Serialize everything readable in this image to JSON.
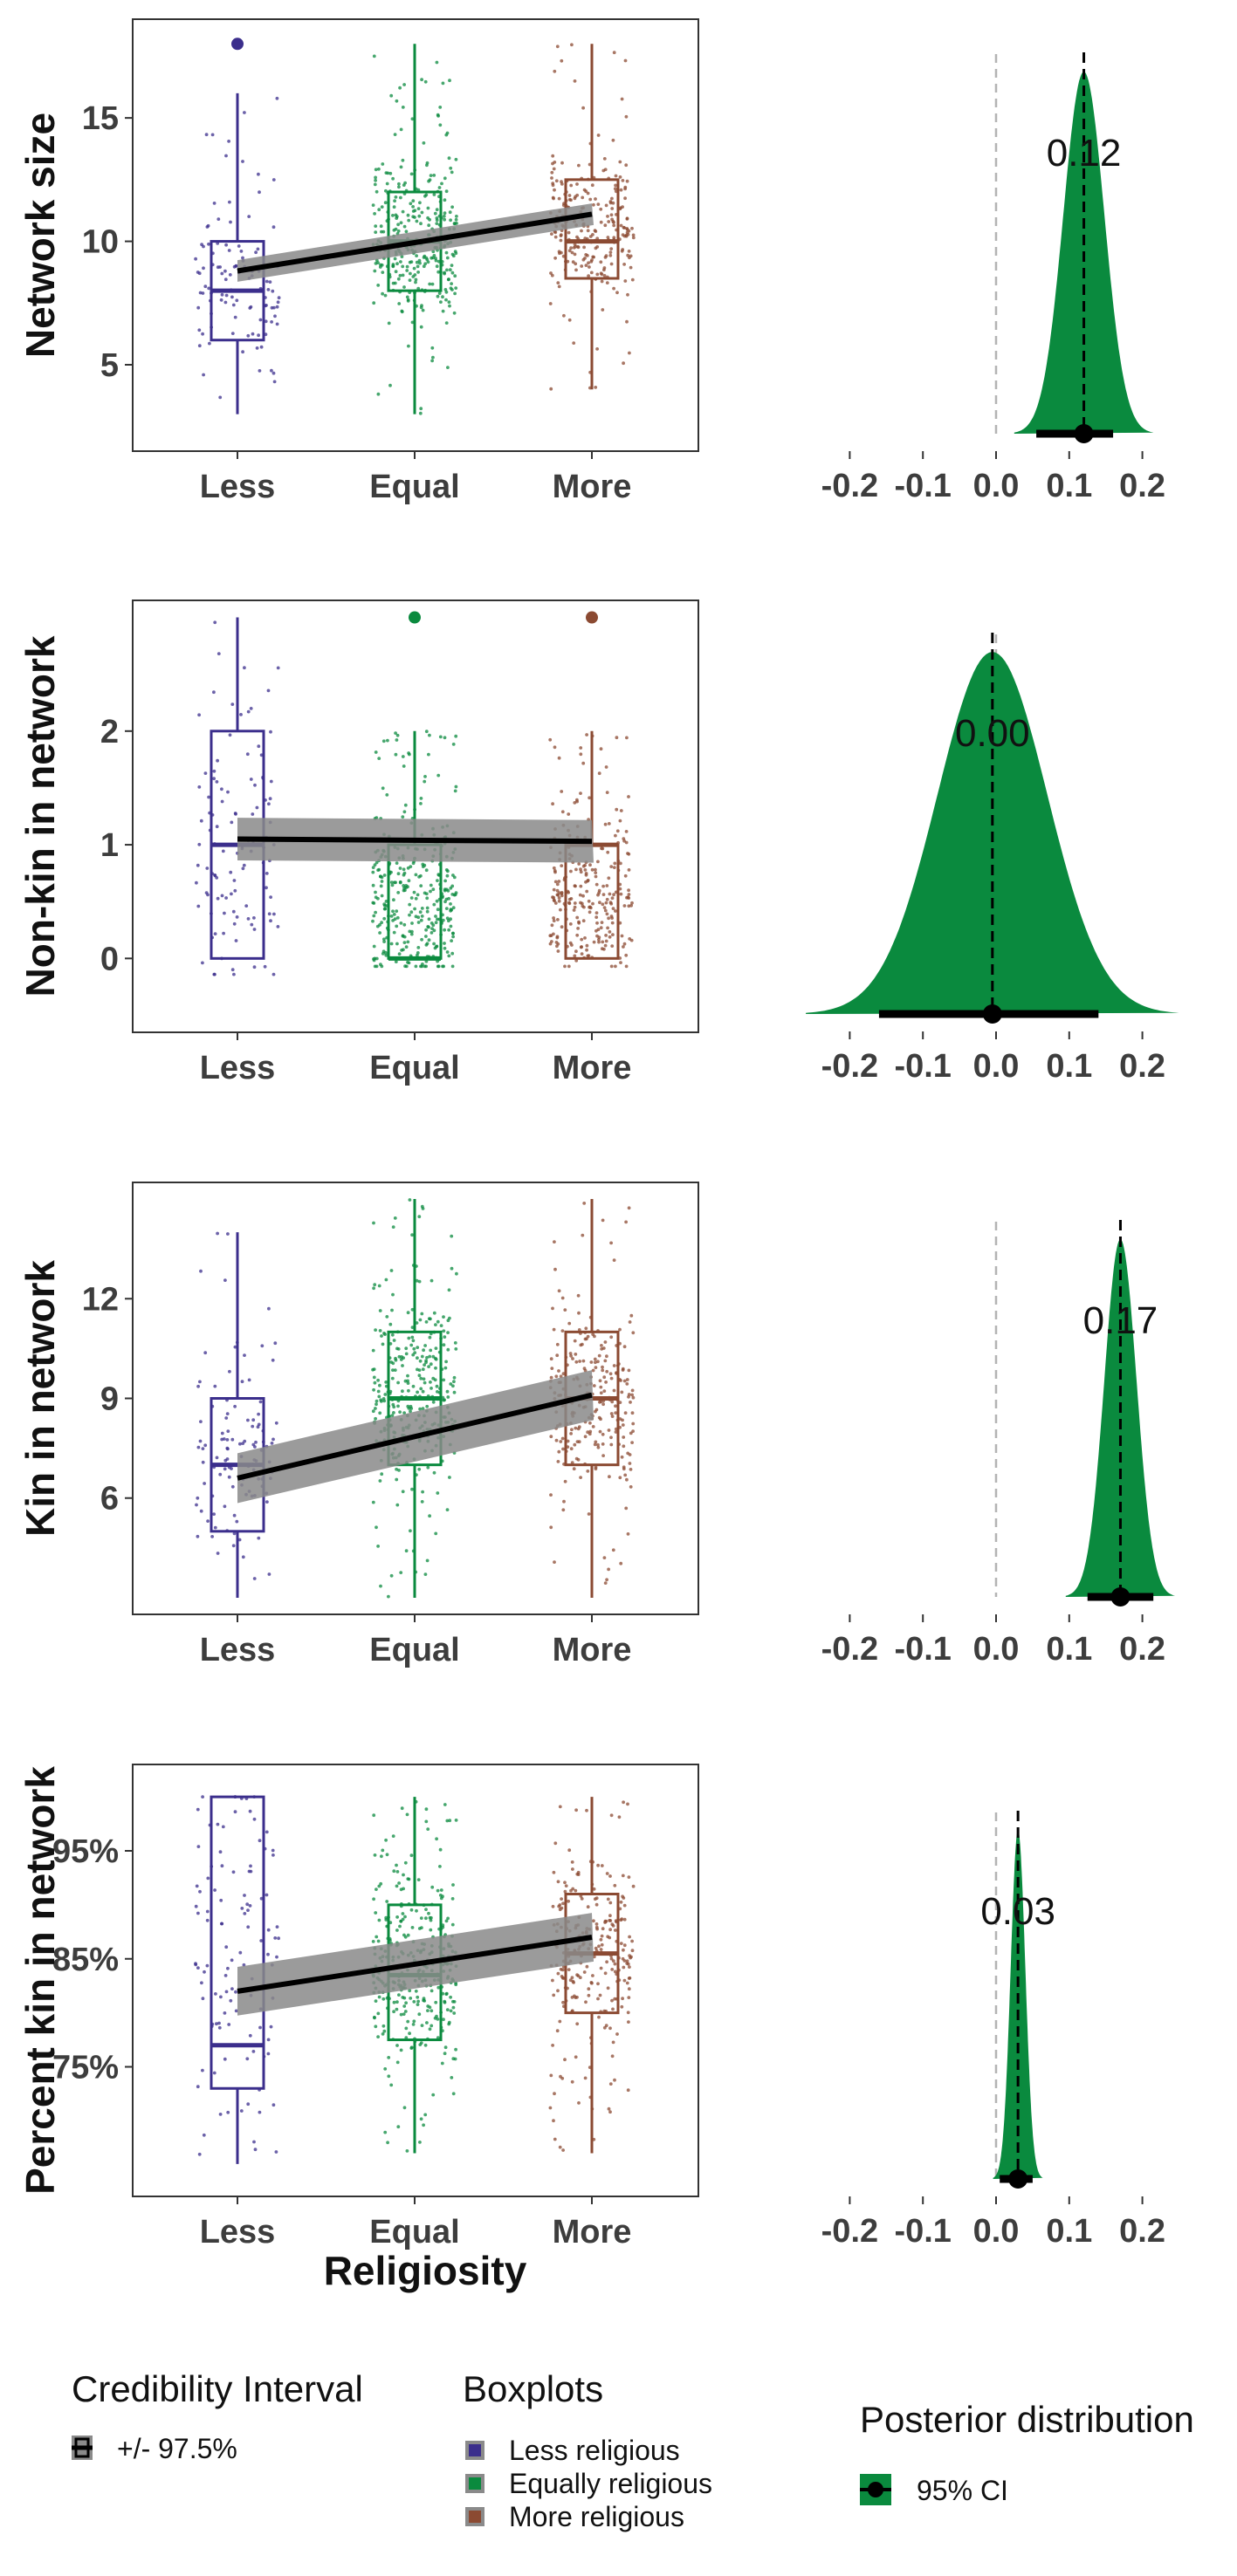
{
  "colors": {
    "less": "#3b2e8c",
    "equal": "#0a8a3e",
    "more": "#8b4a32",
    "posterior_fill": "#0a8a3e",
    "regression_line": "#000000",
    "ci_band": "#8a8a8a",
    "zero_line": "#b3b3b3"
  },
  "shared_xlabel": "Religiosity",
  "chart_data": [
    {
      "type": "boxplot",
      "ylabel": "Network size",
      "categories": [
        "Less",
        "Equal",
        "More"
      ],
      "y_tick_labels": [
        "5",
        "10",
        "15"
      ],
      "y_ticks": [
        5,
        10,
        15
      ],
      "ylim": [
        1.5,
        19
      ],
      "boxes": [
        {
          "category": "Less",
          "whisker_low": 3,
          "q1": 6,
          "median": 8,
          "q3": 10,
          "whisker_high": 16,
          "outliers": [
            18
          ]
        },
        {
          "category": "Equal",
          "whisker_low": 3,
          "q1": 8,
          "median": 10,
          "q3": 12,
          "whisker_high": 18,
          "outliers": []
        },
        {
          "category": "More",
          "whisker_low": 4,
          "q1": 8.5,
          "median": 10,
          "q3": 12.5,
          "whisker_high": 18,
          "outliers": []
        }
      ],
      "trend": {
        "start": 8.8,
        "end": 11.1,
        "band": 0.35
      }
    },
    {
      "type": "boxplot",
      "ylabel": "Non-kin in network",
      "categories": [
        "Less",
        "Equal",
        "More"
      ],
      "y_tick_labels": [
        "0",
        "1",
        "2"
      ],
      "y_ticks": [
        0,
        1,
        2
      ],
      "ylim": [
        -0.65,
        3.15
      ],
      "boxes": [
        {
          "category": "Less",
          "whisker_low": 0,
          "q1": 0,
          "median": 1,
          "q3": 2,
          "whisker_high": 3,
          "outliers": []
        },
        {
          "category": "Equal",
          "whisker_low": 0,
          "q1": 0,
          "median": 0,
          "q3": 1,
          "whisker_high": 2,
          "outliers": [
            3
          ]
        },
        {
          "category": "More",
          "whisker_low": 0,
          "q1": 0,
          "median": 1,
          "q3": 1,
          "whisker_high": 2,
          "outliers": [
            3
          ]
        }
      ],
      "trend": {
        "start": 1.05,
        "end": 1.03,
        "band": 0.15
      }
    },
    {
      "type": "boxplot",
      "ylabel": "Kin in network",
      "categories": [
        "Less",
        "Equal",
        "More"
      ],
      "y_tick_labels": [
        "6",
        "9",
        "12"
      ],
      "y_ticks": [
        6,
        9,
        12
      ],
      "ylim": [
        2.5,
        15.5
      ],
      "boxes": [
        {
          "category": "Less",
          "whisker_low": 3,
          "q1": 5,
          "median": 7,
          "q3": 9,
          "whisker_high": 14,
          "outliers": []
        },
        {
          "category": "Equal",
          "whisker_low": 3,
          "q1": 7,
          "median": 9,
          "q3": 11,
          "whisker_high": 15,
          "outliers": []
        },
        {
          "category": "More",
          "whisker_low": 3,
          "q1": 7,
          "median": 9,
          "q3": 11,
          "whisker_high": 15,
          "outliers": []
        }
      ],
      "trend": {
        "start": 6.6,
        "end": 9.1,
        "band": 0.6
      }
    },
    {
      "type": "boxplot",
      "ylabel": "Percent kin in network",
      "categories": [
        "Less",
        "Equal",
        "More"
      ],
      "y_tick_labels": [
        "75%",
        "85%",
        "95%"
      ],
      "y_ticks": [
        75,
        85,
        95
      ],
      "ylim": [
        63,
        103
      ],
      "boxes": [
        {
          "category": "Less",
          "whisker_low": 66,
          "q1": 73,
          "median": 77,
          "q3": 100,
          "whisker_high": 100,
          "outliers": []
        },
        {
          "category": "Equal",
          "whisker_low": 67,
          "q1": 77.5,
          "median": 83.5,
          "q3": 90,
          "whisker_high": 100,
          "outliers": []
        },
        {
          "category": "More",
          "whisker_low": 67,
          "q1": 80,
          "median": 85.5,
          "q3": 91,
          "whisker_high": 100,
          "outliers": []
        }
      ],
      "trend": {
        "start": 82,
        "end": 87,
        "band": 1.8
      }
    },
    {
      "type": "area",
      "title": "Posterior distribution",
      "x_tick_labels": [
        "-0.2",
        "-0.1",
        "0.0",
        "0.1",
        "0.2"
      ],
      "x_ticks": [
        -0.2,
        -0.1,
        0.0,
        0.1,
        0.2
      ],
      "xlim": [
        -0.26,
        0.28
      ],
      "panels": [
        {
          "mean_label": "0.12",
          "mean": 0.12,
          "sd": 0.028,
          "ci": [
            0.055,
            0.16
          ]
        },
        {
          "mean_label": "0.00",
          "mean": -0.005,
          "sd": 0.075,
          "ci": [
            -0.16,
            0.14
          ]
        },
        {
          "mean_label": "0.17",
          "mean": 0.17,
          "sd": 0.022,
          "ci": [
            0.125,
            0.215
          ]
        },
        {
          "mean_label": "0.03",
          "mean": 0.03,
          "sd": 0.01,
          "ci": [
            0.005,
            0.05
          ]
        }
      ]
    }
  ],
  "legend": {
    "credibility": {
      "title": "Credibility Interval",
      "label": "+/- 97.5%"
    },
    "boxplots": {
      "title": "Boxplots",
      "items": [
        "Less religious",
        "Equally religious",
        "More religious"
      ]
    },
    "posterior": {
      "title": "Posterior distribution",
      "label": "95% CI"
    }
  }
}
